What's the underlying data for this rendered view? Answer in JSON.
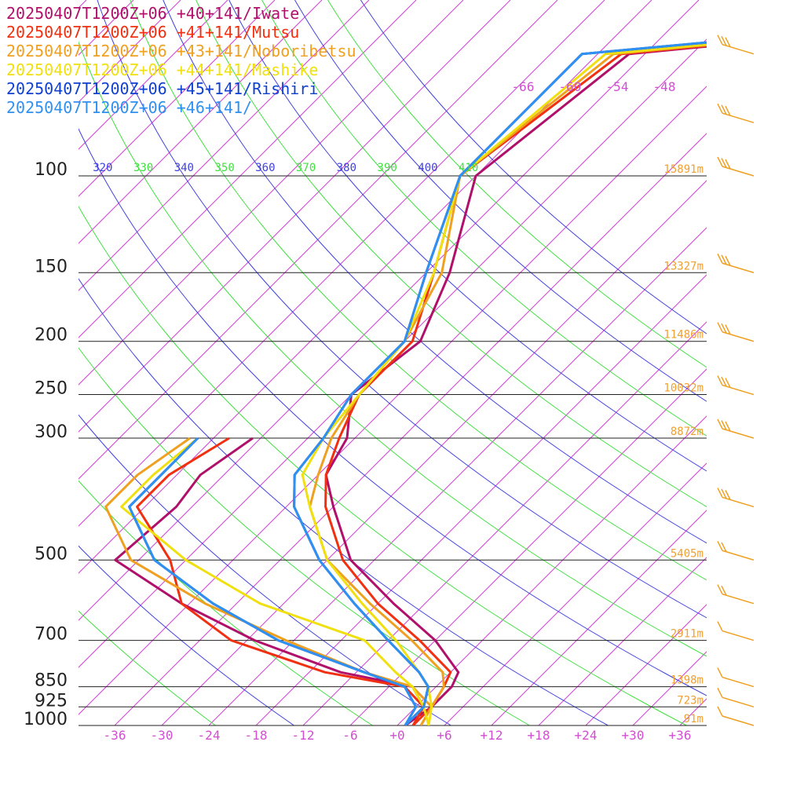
{
  "chart_data": {
    "type": "line",
    "subtype": "skew-T log-p sounding",
    "legend": [
      {
        "label": "20250407T1200Z+06 +40+141/Iwate",
        "color": "#b0106a"
      },
      {
        "label": "20250407T1200Z+06 +41+141/Mutsu",
        "color": "#f03010"
      },
      {
        "label": "20250407T1200Z+06 +43+141/Noboribetsu",
        "color": "#f0a020"
      },
      {
        "label": "20250407T1200Z+06 +44+141/Mashike",
        "color": "#f0e010"
      },
      {
        "label": "20250407T1200Z+06 +45+141/Rishiri",
        "color": "#1040d0"
      },
      {
        "label": "20250407T1200Z+06 +46+141/",
        "color": "#3090f0"
      }
    ],
    "pressure_levels": [
      {
        "p": 100,
        "label": "100",
        "height": "15891m"
      },
      {
        "p": 150,
        "label": "150",
        "height": "13327m"
      },
      {
        "p": 200,
        "label": "200",
        "height": "11486m"
      },
      {
        "p": 250,
        "label": "250",
        "height": "10032m"
      },
      {
        "p": 300,
        "label": "300",
        "height": "8872m"
      },
      {
        "p": 500,
        "label": "500",
        "height": "5405m"
      },
      {
        "p": 700,
        "label": "700",
        "height": "2911m"
      },
      {
        "p": 850,
        "label": "850",
        "height": "1398m"
      },
      {
        "p": 925,
        "label": "925",
        "height": "723m"
      },
      {
        "p": 1000,
        "label": "1000",
        "height": "91m"
      }
    ],
    "temperature_ticks": [
      "-36",
      "-30",
      "-24",
      "-18",
      "-12",
      "-6",
      "+0",
      "+6",
      "+12",
      "+18",
      "+24",
      "+30",
      "+36"
    ],
    "upper_isotherm_labels": [
      "-66",
      "-60",
      "-54",
      "-48"
    ],
    "theta_labels": [
      "320",
      "330",
      "340",
      "350",
      "360",
      "370",
      "380",
      "390",
      "400",
      "410"
    ],
    "theta_colors": {
      "green": "#40e040",
      "blue": "#4040e0"
    },
    "isotherm_color": "#d040d0",
    "barb_color": "#f0a020",
    "series": [
      {
        "name": "20250407T1200Z+06 +40+141/Iwate",
        "color": "#b0106a",
        "temperature": [
          [
            40,
            60
          ],
          [
            60,
            -56
          ],
          [
            100,
            -60
          ],
          [
            150,
            -51
          ],
          [
            200,
            -46
          ],
          [
            250,
            -48
          ],
          [
            300,
            -43
          ],
          [
            350,
            -41
          ],
          [
            400,
            -36
          ],
          [
            500,
            -27
          ],
          [
            600,
            -16
          ],
          [
            700,
            -6
          ],
          [
            800,
            1
          ],
          [
            850,
            2
          ],
          [
            925,
            2
          ],
          [
            1000,
            1
          ]
        ],
        "dewpoint": [
          [
            300,
            -55
          ],
          [
            350,
            -57
          ],
          [
            400,
            -56
          ],
          [
            500,
            -57
          ],
          [
            600,
            -43
          ],
          [
            700,
            -29
          ],
          [
            800,
            -14
          ],
          [
            850,
            -3
          ],
          [
            925,
            1
          ],
          [
            1000,
            1
          ]
        ]
      },
      {
        "name": "20250407T1200Z+06 +41+141/Mutsu",
        "color": "#f03010",
        "temperature": [
          [
            40,
            60
          ],
          [
            60,
            -57
          ],
          [
            100,
            -62
          ],
          [
            150,
            -53
          ],
          [
            200,
            -47
          ],
          [
            250,
            -47
          ],
          [
            300,
            -44
          ],
          [
            350,
            -41
          ],
          [
            400,
            -37
          ],
          [
            500,
            -28
          ],
          [
            600,
            -18
          ],
          [
            700,
            -8
          ],
          [
            800,
            0
          ],
          [
            850,
            1
          ],
          [
            925,
            2
          ],
          [
            1000,
            2
          ]
        ],
        "dewpoint": [
          [
            300,
            -58
          ],
          [
            350,
            -61
          ],
          [
            400,
            -61
          ],
          [
            500,
            -50
          ],
          [
            600,
            -43
          ],
          [
            700,
            -32
          ],
          [
            800,
            -16
          ],
          [
            850,
            -4
          ],
          [
            925,
            1
          ],
          [
            1000,
            2
          ]
        ]
      },
      {
        "name": "20250407T1200Z+06 +43+141/Noboribetsu",
        "color": "#f0a020",
        "temperature": [
          [
            40,
            60
          ],
          [
            60,
            -58
          ],
          [
            100,
            -62
          ],
          [
            150,
            -52
          ],
          [
            200,
            -48
          ],
          [
            250,
            -47
          ],
          [
            300,
            -45
          ],
          [
            350,
            -42
          ],
          [
            400,
            -39
          ],
          [
            500,
            -30
          ],
          [
            600,
            -19
          ],
          [
            700,
            -9
          ],
          [
            800,
            -1
          ],
          [
            850,
            1
          ],
          [
            925,
            2
          ],
          [
            1000,
            3
          ]
        ],
        "dewpoint": [
          [
            300,
            -63
          ],
          [
            350,
            -65
          ],
          [
            400,
            -65
          ],
          [
            500,
            -55
          ],
          [
            600,
            -40
          ],
          [
            700,
            -25
          ],
          [
            800,
            -11
          ],
          [
            850,
            -3
          ],
          [
            925,
            2
          ],
          [
            1000,
            3
          ]
        ]
      },
      {
        "name": "20250407T1200Z+06 +44+141/Mashike",
        "color": "#f0e010",
        "temperature": [
          [
            40,
            60
          ],
          [
            60,
            -59
          ],
          [
            100,
            -62
          ],
          [
            150,
            -53
          ],
          [
            200,
            -48
          ],
          [
            250,
            -47
          ],
          [
            300,
            -46
          ],
          [
            350,
            -44
          ],
          [
            400,
            -39
          ],
          [
            500,
            -30
          ],
          [
            600,
            -20
          ],
          [
            700,
            -11
          ],
          [
            800,
            -4
          ],
          [
            850,
            -1
          ],
          [
            925,
            2
          ],
          [
            1000,
            4
          ]
        ],
        "dewpoint": [
          [
            300,
            -62
          ],
          [
            350,
            -63
          ],
          [
            400,
            -63
          ],
          [
            500,
            -48
          ],
          [
            600,
            -33
          ],
          [
            700,
            -15
          ],
          [
            800,
            -7
          ],
          [
            850,
            -3
          ],
          [
            925,
            1
          ],
          [
            1000,
            4
          ]
        ]
      },
      {
        "name": "20250407T1200Z+06 +45+141/Rishiri",
        "color": "#1040d0",
        "temperature": [
          [
            40,
            60
          ],
          [
            60,
            -62
          ],
          [
            100,
            -62
          ],
          [
            150,
            -54
          ],
          [
            200,
            -48
          ],
          [
            250,
            -48
          ],
          [
            300,
            -46
          ],
          [
            350,
            -45
          ],
          [
            400,
            -41
          ],
          [
            500,
            -31
          ],
          [
            600,
            -21
          ],
          [
            700,
            -12
          ],
          [
            800,
            -4
          ],
          [
            850,
            -1
          ],
          [
            925,
            1
          ],
          [
            1000,
            1
          ]
        ],
        "dewpoint": [
          [
            300,
            -62
          ],
          [
            350,
            -62
          ],
          [
            400,
            -62
          ],
          [
            500,
            -52
          ],
          [
            600,
            -39
          ],
          [
            700,
            -26
          ],
          [
            800,
            -11
          ],
          [
            850,
            -4
          ],
          [
            925,
            0
          ],
          [
            1000,
            1
          ]
        ]
      },
      {
        "name": "20250407T1200Z+06 +46+141/",
        "color": "#3090f0",
        "temperature": [
          [
            40,
            60
          ],
          [
            60,
            -62
          ],
          [
            100,
            -62
          ],
          [
            150,
            -54
          ],
          [
            200,
            -48
          ],
          [
            250,
            -48
          ],
          [
            300,
            -46
          ],
          [
            350,
            -45
          ],
          [
            400,
            -41
          ],
          [
            500,
            -31
          ],
          [
            600,
            -21
          ],
          [
            700,
            -12
          ],
          [
            800,
            -4
          ],
          [
            850,
            -1
          ],
          [
            925,
            1
          ],
          [
            1000,
            1
          ]
        ],
        "dewpoint": [
          [
            300,
            -62
          ],
          [
            350,
            -62
          ],
          [
            400,
            -62
          ],
          [
            500,
            -52
          ],
          [
            600,
            -39
          ],
          [
            700,
            -26
          ],
          [
            800,
            -11
          ],
          [
            850,
            -4
          ],
          [
            925,
            0
          ],
          [
            1000,
            1
          ]
        ]
      }
    ],
    "wind_barbs": [
      {
        "p": 60,
        "barbs": 3,
        "pennant": 0
      },
      {
        "p": 80,
        "barbs": 3,
        "pennant": 0
      },
      {
        "p": 100,
        "barbs": 3,
        "pennant": 0
      },
      {
        "p": 150,
        "barbs": 3,
        "pennant": 0
      },
      {
        "p": 200,
        "barbs": 3,
        "pennant": 0
      },
      {
        "p": 250,
        "barbs": 3,
        "pennant": 0
      },
      {
        "p": 300,
        "barbs": 3,
        "pennant": 0
      },
      {
        "p": 400,
        "barbs": 3,
        "pennant": 0
      },
      {
        "p": 500,
        "barbs": 2,
        "pennant": 0
      },
      {
        "p": 600,
        "barbs": 2,
        "pennant": 0
      },
      {
        "p": 700,
        "barbs": 1,
        "pennant": 0
      },
      {
        "p": 850,
        "barbs": 1,
        "pennant": 0
      },
      {
        "p": 925,
        "barbs": 1,
        "pennant": 0
      },
      {
        "p": 1000,
        "barbs": 1,
        "pennant": 0
      }
    ]
  }
}
